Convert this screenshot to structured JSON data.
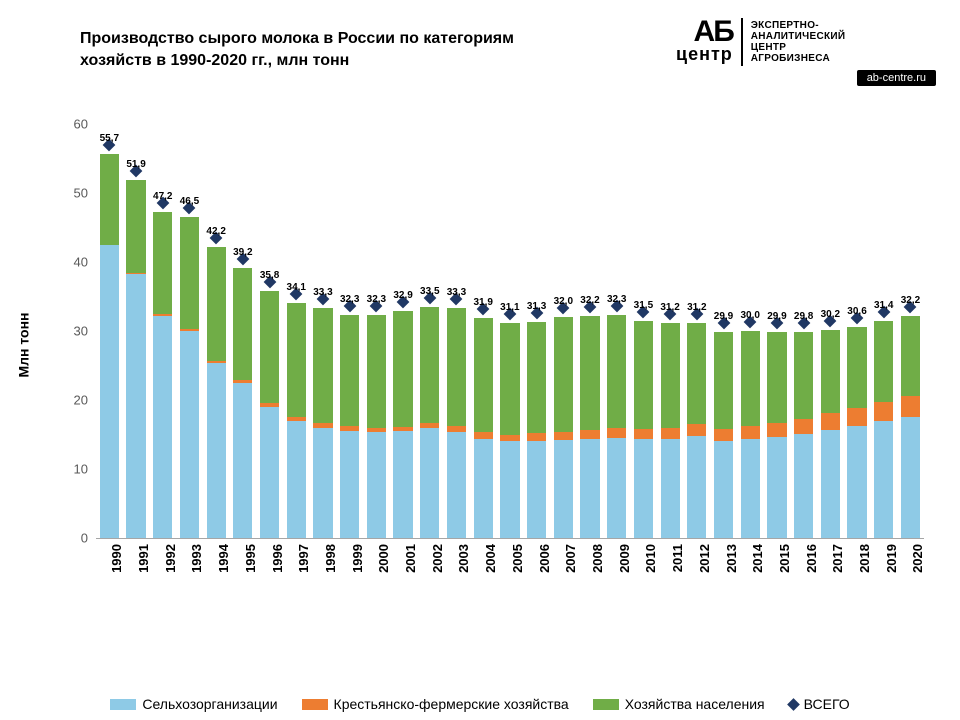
{
  "title": "Производство сырого молока в России по категориям хозяйств в 1990-2020 гг., млн тонн",
  "logo": {
    "ab": "АБ",
    "center": "центр",
    "text_l1": "ЭКСПЕРТНО-",
    "text_l2": "АНАЛИТИЧЕСКИЙ",
    "text_l3": "ЦЕНТР",
    "text_l4": "АГРОБИЗНЕСА",
    "url": "ab-centre.ru"
  },
  "chart": {
    "type": "stacked-bar-with-markers",
    "ylabel": "Млн тонн",
    "ylim": [
      0,
      60
    ],
    "ytick_step": 10,
    "yticks": [
      "0",
      "10",
      "20",
      "30",
      "40",
      "50",
      "60"
    ],
    "years": [
      "1990",
      "1991",
      "1992",
      "1993",
      "1994",
      "1995",
      "1996",
      "1997",
      "1998",
      "1999",
      "2000",
      "2001",
      "2002",
      "2003",
      "2004",
      "2005",
      "2006",
      "2007",
      "2008",
      "2009",
      "2010",
      "2011",
      "2012",
      "2013",
      "2014",
      "2015",
      "2016",
      "2017",
      "2018",
      "2019",
      "2020"
    ],
    "total_labels": [
      "55,7",
      "51,9",
      "47,2",
      "46,5",
      "42,2",
      "39,2",
      "35,8",
      "34,1",
      "33,3",
      "32,3",
      "32,3",
      "32,9",
      "33,5",
      "33,3",
      "31,9",
      "31,1",
      "31,3",
      "32,0",
      "32,2",
      "32,3",
      "31,5",
      "31,2",
      "31,2",
      "29,9",
      "30,0",
      "29,9",
      "29,8",
      "30,2",
      "30,6",
      "31,4",
      "32,2"
    ],
    "series": [
      {
        "name": "Сельхозорганизации",
        "color": "#8ecae6",
        "values": [
          42.4,
          38.3,
          32.2,
          30.0,
          25.3,
          22.4,
          19.0,
          17.0,
          16.0,
          15.5,
          15.3,
          15.5,
          16.0,
          15.4,
          14.4,
          14.0,
          14.1,
          14.2,
          14.3,
          14.5,
          14.3,
          14.4,
          14.8,
          14.0,
          14.4,
          14.7,
          15.1,
          15.7,
          16.2,
          16.9,
          17.6
        ]
      },
      {
        "name": "Крестьянско-фермерские хозяйства",
        "color": "#ed7d31",
        "values": [
          0.0,
          0.1,
          0.2,
          0.3,
          0.4,
          0.5,
          0.5,
          0.6,
          0.7,
          0.7,
          0.6,
          0.6,
          0.6,
          0.9,
          0.9,
          1.0,
          1.1,
          1.2,
          1.3,
          1.4,
          1.5,
          1.5,
          1.7,
          1.8,
          1.9,
          2.0,
          2.2,
          2.4,
          2.6,
          2.8,
          3.0
        ]
      },
      {
        "name": "Хозяйства населения",
        "color": "#70ad47",
        "values": [
          13.3,
          13.5,
          14.8,
          16.2,
          16.5,
          16.3,
          16.3,
          16.5,
          16.6,
          16.1,
          16.4,
          16.8,
          16.9,
          17.0,
          16.6,
          16.1,
          16.1,
          16.6,
          16.6,
          16.4,
          15.7,
          15.3,
          14.7,
          14.1,
          13.7,
          13.2,
          12.5,
          12.1,
          11.8,
          11.7,
          11.6
        ]
      }
    ],
    "marker": {
      "name": "ВСЕГО",
      "color": "#203864"
    },
    "background_color": "#ffffff",
    "axis_color": "#a6a6a6",
    "bar_width_ratio": 0.72,
    "title_fontsize": 16,
    "label_fontsize": 13,
    "marker_label_fontsize": 10
  },
  "legend": {
    "items": [
      {
        "label": "Сельхозорганизации",
        "type": "box",
        "color": "#8ecae6"
      },
      {
        "label": "Крестьянско-фермерские хозяйства",
        "type": "box",
        "color": "#ed7d31"
      },
      {
        "label": "Хозяйства населения",
        "type": "box",
        "color": "#70ad47"
      },
      {
        "label": "ВСЕГО",
        "type": "diamond",
        "color": "#203864"
      }
    ]
  }
}
